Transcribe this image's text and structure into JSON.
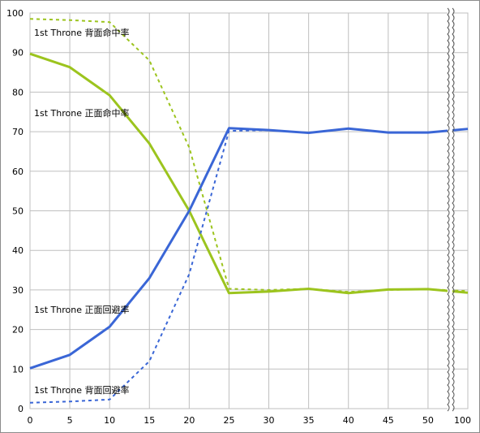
{
  "chart_data": {
    "type": "line",
    "title": "",
    "xlabel": "",
    "ylabel": "",
    "ylim": [
      0,
      100
    ],
    "y_ticks": [
      0,
      10,
      20,
      30,
      40,
      50,
      60,
      70,
      80,
      90,
      100
    ],
    "x_ticks": [
      0,
      5,
      10,
      15,
      20,
      25,
      30,
      35,
      40,
      45,
      50,
      100
    ],
    "axis_break": "between 50 and 100 (wavy break marks)",
    "grid": true,
    "legend": "none (series labeled inline)",
    "colors": {
      "green": "#9cc41e",
      "blue": "#3a66d6",
      "grid": "#bfbfbf"
    },
    "series": [
      {
        "name": "1st Throne 背面命中率",
        "color": "#9cc41e",
        "style": "dashed",
        "x": [
          0,
          5,
          10,
          15,
          20,
          25,
          30,
          35,
          40,
          45,
          50,
          100
        ],
        "values": [
          98.5,
          98.2,
          97.7,
          88,
          66,
          30.3,
          30,
          30.3,
          29.5,
          30,
          30.2,
          29.7
        ]
      },
      {
        "name": "1st Throne 正面命中率",
        "color": "#9cc41e",
        "style": "solid",
        "x": [
          0,
          5,
          10,
          15,
          20,
          25,
          30,
          35,
          40,
          45,
          50,
          100
        ],
        "values": [
          89.7,
          86.3,
          79.2,
          67,
          50,
          29.2,
          29.6,
          30.3,
          29.2,
          30.1,
          30.2,
          29.3
        ]
      },
      {
        "name": "1st Throne 正面回避率",
        "color": "#3a66d6",
        "style": "solid",
        "x": [
          0,
          5,
          10,
          15,
          20,
          25,
          30,
          35,
          40,
          45,
          50,
          100
        ],
        "values": [
          10.2,
          13.6,
          20.7,
          33,
          50,
          70.9,
          70.4,
          69.7,
          70.8,
          69.8,
          69.8,
          70.7
        ]
      },
      {
        "name": "1st Throne 背面回避率",
        "color": "#3a66d6",
        "style": "dashed",
        "x": [
          0,
          5,
          10,
          15,
          20,
          25,
          30,
          35,
          40,
          45,
          50,
          100
        ],
        "values": [
          1.5,
          1.8,
          2.3,
          12,
          34,
          70.2,
          70.4,
          69.7,
          70.8,
          69.8,
          69.8,
          70.7
        ]
      }
    ]
  }
}
